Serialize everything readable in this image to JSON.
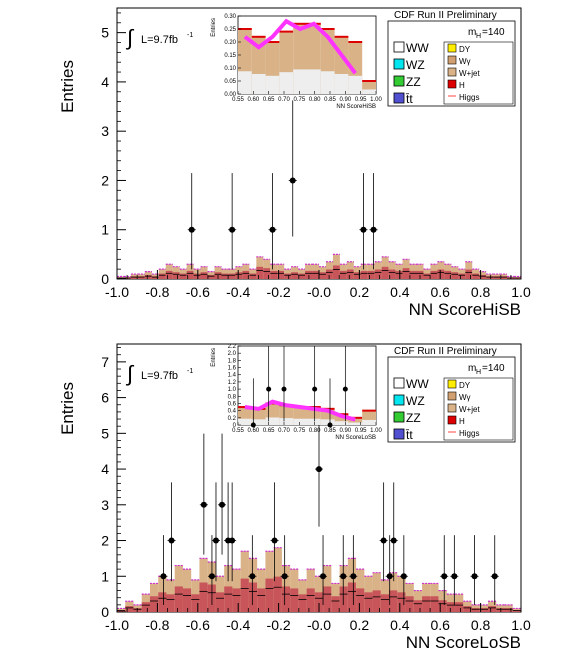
{
  "legend_common": {
    "mass_label": "m",
    "mass_sub": "H",
    "mass_value": "=140",
    "preliminary": "CDF Run II Preliminary",
    "lumi_prefix": "L=9.7fb",
    "lumi_sup": "-1",
    "integral": "∫",
    "entries_left": [
      {
        "label": "WW",
        "color": "#ffffff"
      },
      {
        "label": "WZ",
        "color": "#00e5ee"
      },
      {
        "label": "ZZ",
        "color": "#33cc33"
      },
      {
        "label": "t̄t",
        "color": "#5050d0"
      }
    ],
    "entries_right": [
      {
        "label": "DY",
        "color": "#ffee00"
      },
      {
        "label": "Wγ",
        "color": "#d2a070"
      },
      {
        "label": "W+jet",
        "color": "#d9b287"
      },
      {
        "label": "H",
        "color": "#dd0000"
      },
      {
        "label": "Higgs",
        "color": "#ff4444",
        "line": true
      }
    ]
  },
  "chart_data": [
    {
      "type": "histogram",
      "xlabel": "NN ScoreHiSB",
      "ylabel": "Entries",
      "xlim": [
        -1.0,
        1.0
      ],
      "ylim": [
        0,
        5.5
      ],
      "x_ticks": [
        "-1.0",
        "-0.8",
        "-0.6",
        "-0.4",
        "-0.2",
        "-0.0",
        "0.2",
        "0.4",
        "0.6",
        "0.8",
        "1.0"
      ],
      "y_ticks": [
        "0",
        "1",
        "2",
        "3",
        "4",
        "5"
      ],
      "bins_background": [
        0.05,
        0.05,
        0.1,
        0.1,
        0.15,
        0.1,
        0.2,
        0.3,
        0.25,
        0.2,
        0.3,
        0.2,
        0.25,
        0.15,
        0.25,
        0.2,
        0.2,
        0.25,
        0.3,
        0.2,
        0.45,
        0.4,
        0.3,
        0.3,
        0.2,
        0.25,
        0.2,
        0.3,
        0.3,
        0.25,
        0.35,
        0.5,
        0.3,
        0.35,
        0.25,
        0.3,
        0.3,
        0.35,
        0.45,
        0.35,
        0.3,
        0.4,
        0.3,
        0.3,
        0.2,
        0.3,
        0.35,
        0.3,
        0.25,
        0.2,
        0.35,
        0.2,
        0.15,
        0.1,
        0.1,
        0.1,
        0.05,
        0.05
      ],
      "data_points": [
        {
          "x": -0.63,
          "y": 1
        },
        {
          "x": -0.43,
          "y": 1
        },
        {
          "x": -0.23,
          "y": 1
        },
        {
          "x": -0.13,
          "y": 2
        },
        {
          "x": 0.22,
          "y": 1
        },
        {
          "x": 0.27,
          "y": 1
        }
      ],
      "inset": {
        "xlabel": "NN ScoreHiSB",
        "ylabel": "Entries",
        "xlim": [
          0.55,
          1.0
        ],
        "ylim": [
          0,
          0.3
        ],
        "x_ticks": [
          "0.55",
          "0.60",
          "0.65",
          "0.70",
          "0.75",
          "0.80",
          "0.85",
          "0.90",
          "0.95",
          "1.00"
        ],
        "y_ticks": [
          "0.00",
          "0.05",
          "0.10",
          "0.15",
          "0.20",
          "0.25",
          "0.30"
        ],
        "bins_background": [
          0.25,
          0.22,
          0.2,
          0.24,
          0.27,
          0.27,
          0.25,
          0.22,
          0.2,
          0.05
        ],
        "signal_band": [
          0.22,
          0.18,
          0.22,
          0.28,
          0.25,
          0.27,
          0.22,
          0.15,
          0.08
        ]
      }
    },
    {
      "type": "histogram",
      "xlabel": "NN ScoreLoSB",
      "ylabel": "Entries",
      "xlim": [
        -1.0,
        1.0
      ],
      "ylim": [
        0,
        7.5
      ],
      "x_ticks": [
        "-1.0",
        "-0.8",
        "-0.6",
        "-0.4",
        "-0.2",
        "-0.0",
        "0.2",
        "0.4",
        "0.6",
        "0.8",
        "1.0"
      ],
      "y_ticks": [
        "0",
        "1",
        "2",
        "3",
        "4",
        "5",
        "6",
        "7"
      ],
      "bins_background": [
        0.1,
        0.3,
        0.2,
        0.5,
        0.8,
        1.0,
        0.9,
        1.3,
        1.2,
        0.9,
        1.5,
        1.4,
        1.0,
        1.3,
        1.2,
        1.7,
        1.5,
        1.2,
        1.7,
        1.8,
        1.3,
        1.2,
        0.9,
        1.2,
        1.0,
        1.3,
        0.8,
        1.3,
        1.5,
        1.2,
        1.0,
        1.1,
        0.9,
        1.1,
        1.0,
        0.8,
        0.6,
        0.8,
        0.8,
        0.6,
        0.5,
        0.5,
        0.3,
        0.2,
        0.2,
        0.3,
        0.2,
        0.2,
        0.1
      ],
      "data_points": [
        {
          "x": -0.77,
          "y": 1
        },
        {
          "x": -0.73,
          "y": 2
        },
        {
          "x": -0.57,
          "y": 3
        },
        {
          "x": -0.53,
          "y": 1
        },
        {
          "x": -0.51,
          "y": 2
        },
        {
          "x": -0.48,
          "y": 3
        },
        {
          "x": -0.45,
          "y": 2
        },
        {
          "x": -0.43,
          "y": 2
        },
        {
          "x": -0.33,
          "y": 1
        },
        {
          "x": -0.22,
          "y": 2
        },
        {
          "x": -0.17,
          "y": 1
        },
        {
          "x": -0.0,
          "y": 4
        },
        {
          "x": 0.02,
          "y": 1
        },
        {
          "x": 0.12,
          "y": 1
        },
        {
          "x": 0.17,
          "y": 1
        },
        {
          "x": 0.32,
          "y": 2
        },
        {
          "x": 0.35,
          "y": 1
        },
        {
          "x": 0.37,
          "y": 2
        },
        {
          "x": 0.42,
          "y": 1
        },
        {
          "x": 0.62,
          "y": 1
        },
        {
          "x": 0.67,
          "y": 1
        },
        {
          "x": 0.77,
          "y": 1
        },
        {
          "x": 0.87,
          "y": 1
        }
      ],
      "inset": {
        "xlabel": "NN ScoreLoSB",
        "ylabel": "Entries",
        "xlim": [
          0.55,
          1.0
        ],
        "ylim": [
          0,
          2.2
        ],
        "x_ticks": [
          "0.55",
          "0.60",
          "0.65",
          "0.70",
          "0.75",
          "0.80",
          "0.85",
          "0.90",
          "0.95",
          "1.00"
        ],
        "y_ticks": [
          "0",
          "0.2",
          "0.4",
          "0.6",
          "0.8",
          "1.0",
          "1.2",
          "1.4",
          "1.6",
          "1.8",
          "2.0",
          "2.2"
        ],
        "bins_background": [
          0.5,
          0.45,
          0.6,
          0.55,
          0.5,
          0.5,
          0.45,
          0.3,
          0.2,
          0.4
        ],
        "signal_band": [
          0.5,
          0.45,
          0.65,
          0.55,
          0.5,
          0.45,
          0.4,
          0.25,
          0.15
        ],
        "data_points": [
          {
            "x": 0.65,
            "y": 1
          },
          {
            "x": 0.7,
            "y": 1
          },
          {
            "x": 0.8,
            "y": 1
          },
          {
            "x": 0.9,
            "y": 1
          },
          {
            "x": 0.6,
            "y": 0
          },
          {
            "x": 0.85,
            "y": 0
          }
        ]
      }
    }
  ]
}
